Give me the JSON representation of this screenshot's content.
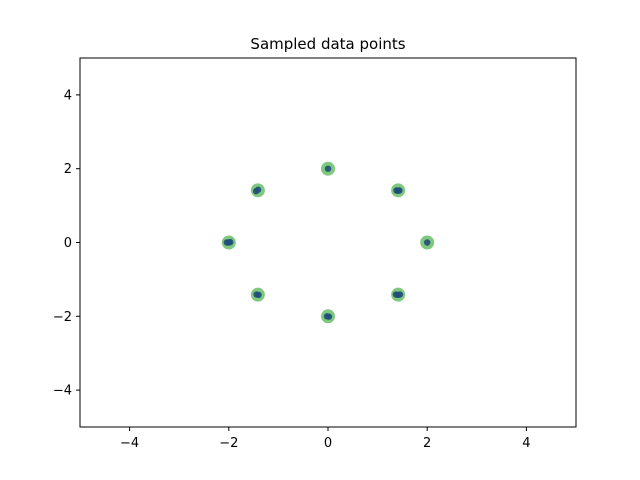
{
  "chart_data": {
    "type": "scatter",
    "title": "Sampled data points",
    "xlabel": "",
    "ylabel": "",
    "xlim": [
      -5,
      5
    ],
    "ylim": [
      -5,
      5
    ],
    "xticks": [
      -4,
      -2,
      0,
      2,
      4
    ],
    "yticks": [
      -4,
      -2,
      0,
      2,
      4
    ],
    "xtick_labels": [
      "−4",
      "−2",
      "0",
      "2",
      "4"
    ],
    "ytick_labels": [
      "−4",
      "−2",
      "0",
      "2",
      "4"
    ],
    "grid": false,
    "legend": "none",
    "series": [
      {
        "marker": "large-circle",
        "color": "#5cb85c",
        "x": [
          0,
          1.414,
          2,
          1.414,
          0,
          -1.414,
          -2,
          -1.414
        ],
        "y": [
          2,
          1.414,
          0,
          -1.414,
          -2,
          -1.414,
          0,
          1.414
        ]
      },
      {
        "marker": "small-dot",
        "color": "#1f4e79",
        "x": [
          0.0,
          1.38,
          1.41,
          1.44,
          2.0,
          1.37,
          1.41,
          1.45,
          -0.02,
          0.02,
          -1.44,
          -1.4,
          -2.04,
          -2.0,
          -1.97,
          -1.45,
          -1.41
        ],
        "y": [
          2.0,
          1.41,
          1.4,
          1.41,
          0.0,
          -1.41,
          -1.42,
          -1.41,
          -2.0,
          -2.01,
          -1.41,
          -1.42,
          0.0,
          0.0,
          0.01,
          1.39,
          1.43
        ]
      }
    ]
  }
}
